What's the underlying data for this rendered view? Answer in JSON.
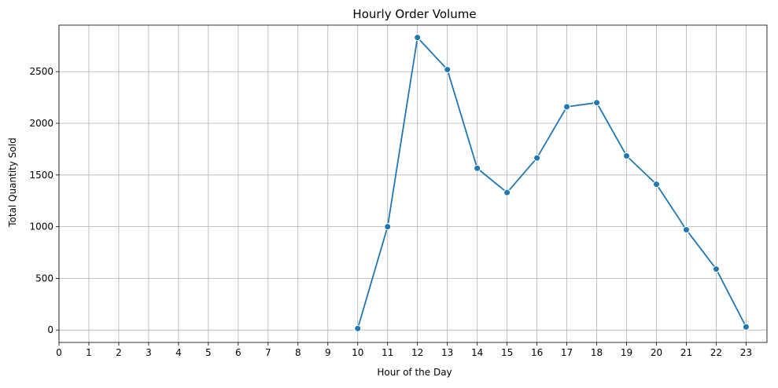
{
  "chart_data": {
    "type": "line",
    "title": "Hourly Order Volume",
    "xlabel": "Hour of the Day",
    "ylabel": "Total Quantity Sold",
    "x_ticks": [
      "0",
      "1",
      "2",
      "3",
      "4",
      "5",
      "6",
      "7",
      "8",
      "9",
      "10",
      "11",
      "12",
      "13",
      "14",
      "15",
      "16",
      "17",
      "18",
      "19",
      "20",
      "21",
      "22",
      "23"
    ],
    "y_ticks": [
      "0",
      "500",
      "1000",
      "1500",
      "2000",
      "2500"
    ],
    "xlim": [
      0,
      23.7
    ],
    "ylim": [
      -120,
      2950
    ],
    "grid": true,
    "line_color": "#1f77b4",
    "grid_color": "#b0b0b0",
    "series": [
      {
        "x": [
          10,
          11,
          12,
          13,
          14,
          15,
          16,
          17,
          18,
          19,
          20,
          21,
          22,
          23
        ],
        "y": [
          15,
          1000,
          2830,
          2520,
          1565,
          1330,
          1665,
          2160,
          2200,
          1685,
          1410,
          970,
          590,
          30
        ]
      }
    ]
  }
}
